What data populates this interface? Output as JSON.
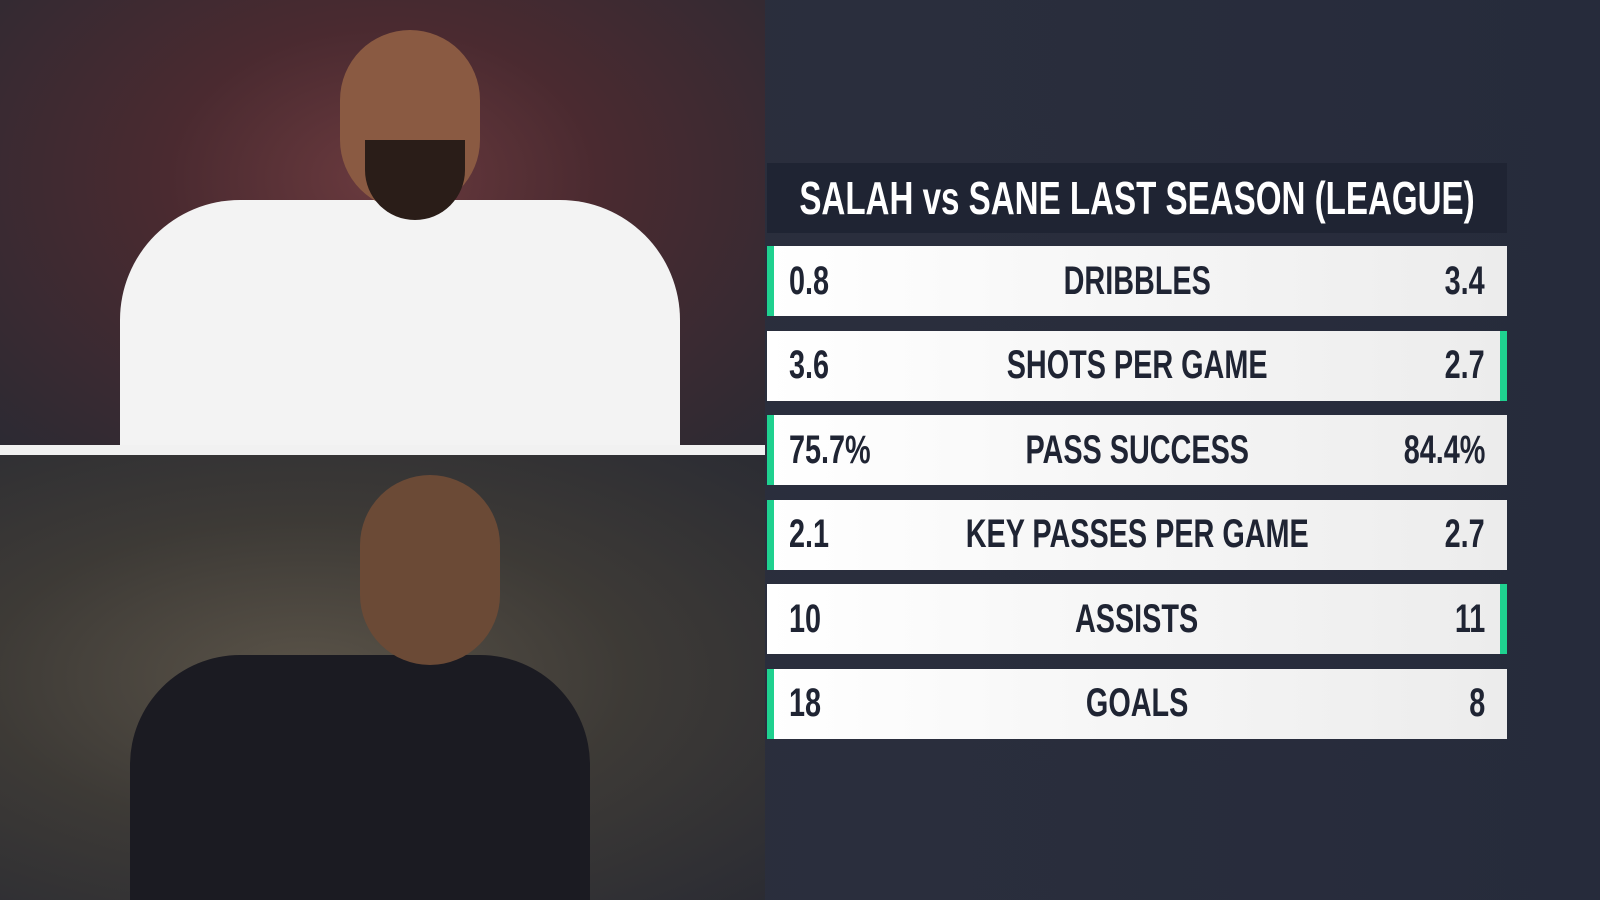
{
  "title": "SALAH vs SANE LAST SEASON (LEAGUE)",
  "rows": [
    {
      "left": "0.8",
      "label": "DRIBBLES",
      "right": "3.4",
      "accent": "left"
    },
    {
      "left": "3.6",
      "label": "SHOTS PER GAME",
      "right": "2.7",
      "accent": "right"
    },
    {
      "left": "75.7%",
      "label": "PASS SUCCESS",
      "right": "84.4%",
      "accent": "left"
    },
    {
      "left": "2.1",
      "label": "KEY PASSES PER GAME",
      "right": "2.7",
      "accent": "left"
    },
    {
      "left": "10",
      "label": "ASSISTS",
      "right": "11",
      "accent": "right"
    },
    {
      "left": "18",
      "label": "GOALS",
      "right": "8",
      "accent": "left"
    }
  ]
}
